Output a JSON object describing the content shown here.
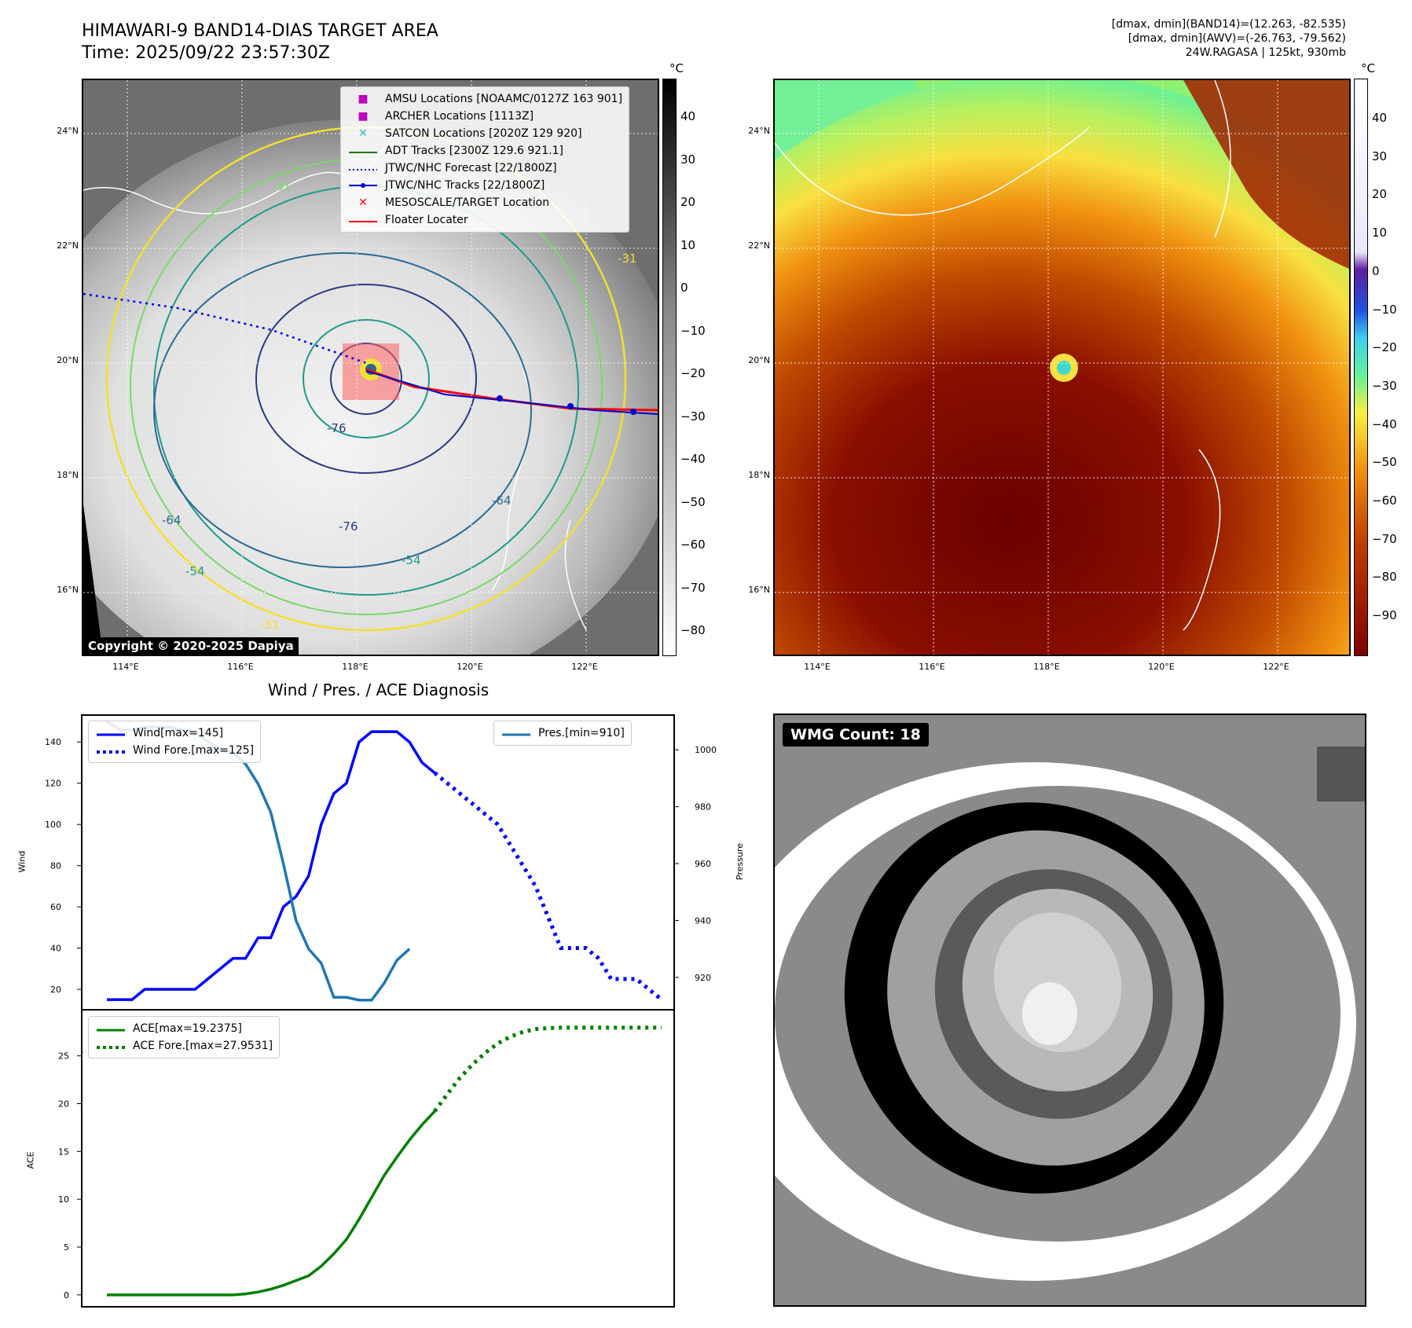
{
  "header": {
    "title_line1": "HIMAWARI-9 BAND14-DIAS TARGET AREA",
    "title_line2": "Time: 2025/09/22 23:57:30Z",
    "right_line1": "[dmax, dmin](BAND14)=(12.263, -82.535)",
    "right_line2": "[dmax, dmin](AWV)=(-26.763, -79.562)",
    "right_line3": "24W.RAGASA | 125kt, 930mb"
  },
  "map": {
    "lon_ticks": [
      "114°E",
      "116°E",
      "118°E",
      "120°E",
      "122°E"
    ],
    "lat_ticks": [
      "24°N",
      "22°N",
      "20°N",
      "18°N",
      "16°N"
    ],
    "colorbar_unit": "°C",
    "left_colorbar_ticks": [
      "40",
      "30",
      "20",
      "10",
      "0",
      "−10",
      "−20",
      "−30",
      "−40",
      "−50",
      "−60",
      "−70",
      "−80"
    ],
    "right_colorbar_ticks": [
      "40",
      "30",
      "20",
      "10",
      "0",
      "−10",
      "−20",
      "−30",
      "−40",
      "−50",
      "−60",
      "−70",
      "−80",
      "−90"
    ],
    "contour_labels": [
      "-31",
      "-31",
      "-31",
      "-31",
      "-76",
      "-76",
      "-64",
      "-64",
      "-54",
      "-54",
      "-31",
      "-31"
    ],
    "copyright": "Copyright © 2020-2025 Dapiya",
    "legend": [
      {
        "label": "AMSU Locations [NOAAMC/0127Z 163 901]",
        "marker": "square",
        "color": "#c000c0"
      },
      {
        "label": "ARCHER Locations [1113Z]",
        "marker": "square",
        "color": "#c000c0"
      },
      {
        "label": "SATCON Locations [2020Z 129 920]",
        "marker": "x",
        "color": "#20c0c0"
      },
      {
        "label": "ADT Tracks [2300Z 129.6 921.1]",
        "marker": "line",
        "color": "#008000"
      },
      {
        "label": "JTWC/NHC Forecast [22/1800Z]",
        "marker": "dotted",
        "color": "#0000ff"
      },
      {
        "label": "JTWC/NHC Tracks [22/1800Z]",
        "marker": "line-dot",
        "color": "#0000cc"
      },
      {
        "label": "MESOSCALE/TARGET Location",
        "marker": "x",
        "color": "#ff0000"
      },
      {
        "label": "Floater Locater",
        "marker": "line",
        "color": "#ff0000"
      }
    ]
  },
  "diag_title": "Wind / Pres. / ACE Diagnosis",
  "wmg_label": "WMG Count: 18",
  "chart_data": [
    {
      "type": "line",
      "title": "Wind / Pres. / ACE Diagnosis",
      "ylabel": "Wind",
      "y2label": "Pressure",
      "ylim": [
        12,
        150
      ],
      "y2lim": [
        910,
        1010
      ],
      "yticks": [
        20,
        40,
        60,
        80,
        100,
        120,
        140
      ],
      "y2ticks": [
        920,
        940,
        960,
        980,
        1000
      ],
      "series": [
        {
          "name": "Wind[max=145]",
          "axis": "left",
          "color": "#0000ff",
          "style": "solid",
          "values": [
            15,
            15,
            15,
            20,
            20,
            20,
            20,
            20,
            25,
            30,
            35,
            35,
            45,
            45,
            60,
            65,
            75,
            100,
            115,
            120,
            140,
            145,
            145,
            145,
            140,
            130,
            125
          ]
        },
        {
          "name": "Wind Fore.[max=125]",
          "axis": "left",
          "color": "#0000ff",
          "style": "dotted",
          "values": [
            125,
            120,
            115,
            110,
            105,
            100,
            90,
            80,
            70,
            55,
            40,
            40,
            40,
            35,
            25,
            25,
            25,
            20,
            15
          ],
          "x_start": 26
        },
        {
          "name": "Pres.[min=910]",
          "axis": "right",
          "color": "#1f77b4",
          "style": "solid",
          "values": [
            1010,
            1007,
            1007,
            1008,
            1008,
            1008,
            1007,
            1006,
            1003,
            1000,
            999,
            995,
            988,
            978,
            960,
            940,
            930,
            925,
            913,
            913,
            912,
            912,
            918,
            926,
            930
          ]
        }
      ]
    },
    {
      "type": "line",
      "ylabel": "ACE",
      "ylim": [
        -1,
        29
      ],
      "yticks": [
        0,
        5,
        10,
        15,
        20,
        25
      ],
      "series": [
        {
          "name": "ACE[max=19.2375]",
          "color": "#008000",
          "style": "solid",
          "values": [
            0,
            0,
            0,
            0,
            0,
            0,
            0,
            0,
            0,
            0,
            0,
            0.1,
            0.3,
            0.6,
            1.0,
            1.5,
            2.0,
            3.0,
            4.3,
            5.8,
            7.9,
            10.2,
            12.5,
            14.4,
            16.2,
            17.8,
            19.2
          ]
        },
        {
          "name": "ACE Fore.[max=27.9531]",
          "color": "#008000",
          "style": "dotted",
          "x_start": 26,
          "values": [
            19.2,
            21.0,
            22.7,
            24.1,
            25.3,
            26.3,
            27.0,
            27.5,
            27.8,
            27.9,
            27.95,
            27.95,
            27.95,
            27.95,
            27.95,
            27.95,
            27.95,
            27.95,
            27.95
          ]
        }
      ]
    }
  ]
}
